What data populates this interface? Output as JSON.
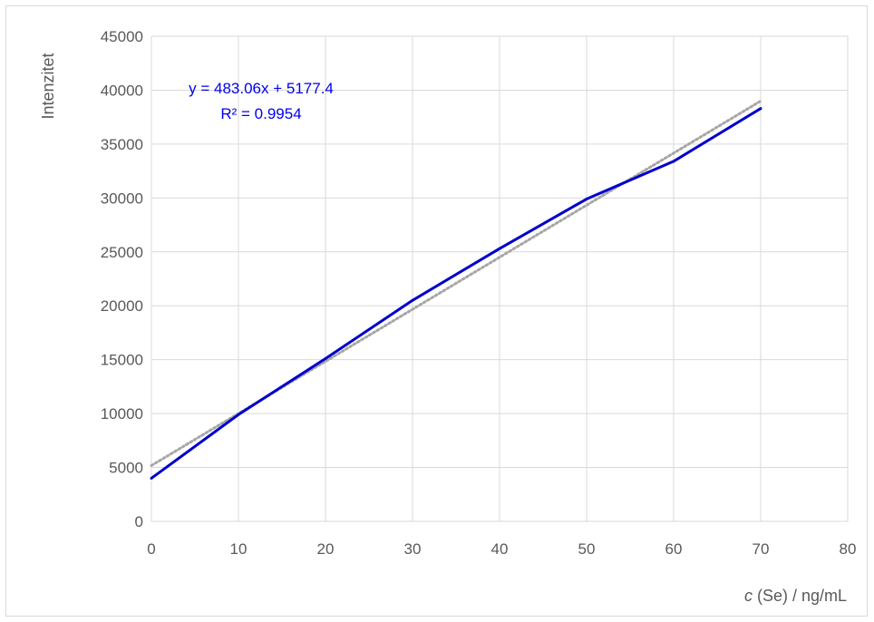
{
  "chart_data": {
    "type": "line",
    "title": "",
    "xlabel_italic": "c",
    "xlabel_rest": " (Se) / ng/mL",
    "ylabel": "Intenzitet",
    "xlim": [
      0,
      80
    ],
    "ylim": [
      0,
      45000
    ],
    "x_ticks": [
      "0",
      "10",
      "20",
      "30",
      "40",
      "50",
      "60",
      "70",
      "80"
    ],
    "y_ticks": [
      "0",
      "5000",
      "10000",
      "15000",
      "20000",
      "25000",
      "30000",
      "35000",
      "40000",
      "45000"
    ],
    "grid": true,
    "series": [
      {
        "color": "#0000cc",
        "x": [
          0,
          10,
          20,
          30,
          40,
          50,
          60,
          70
        ],
        "y": [
          4000,
          9900,
          15100,
          20500,
          25300,
          29900,
          33400,
          38300
        ]
      }
    ],
    "trendline": {
      "type": "linear",
      "slope": 483.06,
      "intercept": 5177.4,
      "x_range": [
        0,
        70
      ],
      "color": "#a6a6a6",
      "style": "dotted",
      "equation": "y = 483.06x + 5177.4",
      "r_squared": "R² = 0.9954"
    }
  }
}
